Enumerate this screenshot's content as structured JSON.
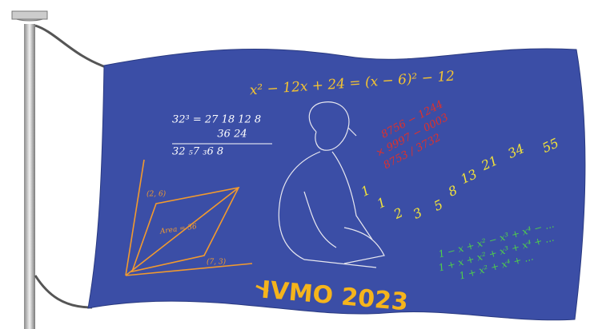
{
  "equation": "x² − 12x + 24 = (x − 6)² − 12",
  "cube": {
    "rows": [
      "32³ = 27   18   12   8",
      "36   24",
      "32   ₅7   ₃6   8"
    ]
  },
  "subtraction": [
    "8756 − 1244",
    "× 9997 − 0003",
    "8753 / 3732"
  ],
  "fibonacci": [
    1,
    1,
    2,
    3,
    5,
    8,
    13,
    21,
    34,
    55
  ],
  "parallelogram": {
    "labels": [
      "(2, 6)",
      "(7, 3)"
    ],
    "area": "Area = 36"
  },
  "series": [
    "1 − x + x² − x³ + x⁴ − ...",
    "1 + x + x² + x³ + x⁴ + ...",
    "1 + x² + x⁴ + ..."
  ],
  "title": "IVMO 2023"
}
